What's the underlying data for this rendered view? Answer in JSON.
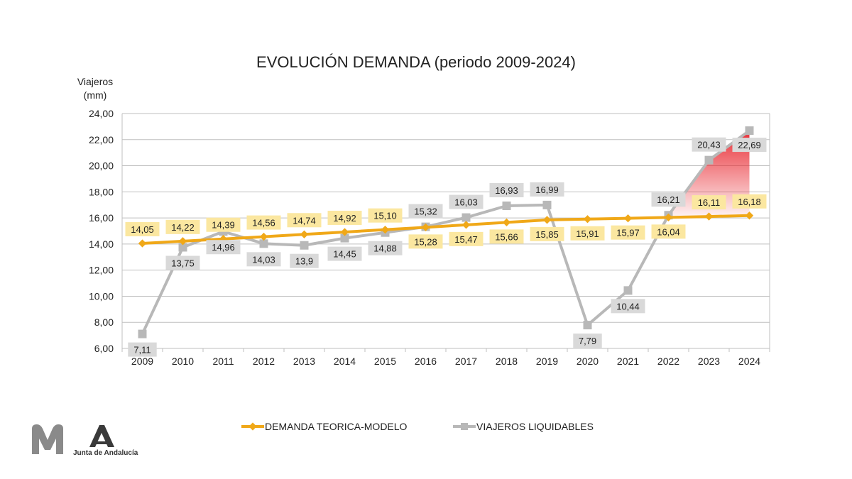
{
  "chart_data": {
    "type": "line",
    "title": "EVOLUCIÓN DEMANDA (periodo 2009-2024)",
    "ylabel_line1": "Viajeros",
    "ylabel_line2": "(mm)",
    "ylim": [
      6,
      24
    ],
    "yticks": [
      "6,00",
      "8,00",
      "10,00",
      "12,00",
      "14,00",
      "16,00",
      "18,00",
      "20,00",
      "22,00",
      "24,00"
    ],
    "categories": [
      "2009",
      "2010",
      "2011",
      "2012",
      "2013",
      "2014",
      "2015",
      "2016",
      "2017",
      "2018",
      "2019",
      "2020",
      "2021",
      "2022",
      "2023",
      "2024"
    ],
    "grid": true,
    "legend_position": "bottom",
    "series": [
      {
        "name": "DEMANDA TEORICA-MODELO",
        "color": "#f0a818",
        "label_bg": "#fbe7a0",
        "values": [
          14.05,
          14.22,
          14.39,
          14.56,
          14.74,
          14.92,
          15.1,
          15.28,
          15.47,
          15.66,
          15.85,
          15.91,
          15.97,
          16.04,
          16.11,
          16.18
        ],
        "labels": [
          "14,05",
          "14,22",
          "14,39",
          "14,56",
          "14,74",
          "14,92",
          "15,10",
          "15,28",
          "15,47",
          "15,66",
          "15,85",
          "15,91",
          "15,97",
          "16,04",
          "16,11",
          "16,18"
        ]
      },
      {
        "name": "VIAJEROS LIQUIDABLES",
        "color": "#b8b8b8",
        "label_bg": "#d9d9d9",
        "values": [
          7.11,
          13.75,
          14.96,
          14.03,
          13.9,
          14.45,
          14.88,
          15.32,
          16.03,
          16.93,
          16.99,
          7.79,
          10.44,
          16.21,
          20.43,
          22.69
        ],
        "labels": [
          "7,11",
          "13,75",
          "14,96",
          "14,03",
          "13,9",
          "14,45",
          "14,88",
          "15,32",
          "16,03",
          "16,93",
          "16,99",
          "7,79",
          "10,44",
          "16,21",
          "20,43",
          "22,69"
        ]
      }
    ],
    "highlight_color": "#e8242c"
  },
  "logo": {
    "org_text": "Junta de Andalucía"
  }
}
